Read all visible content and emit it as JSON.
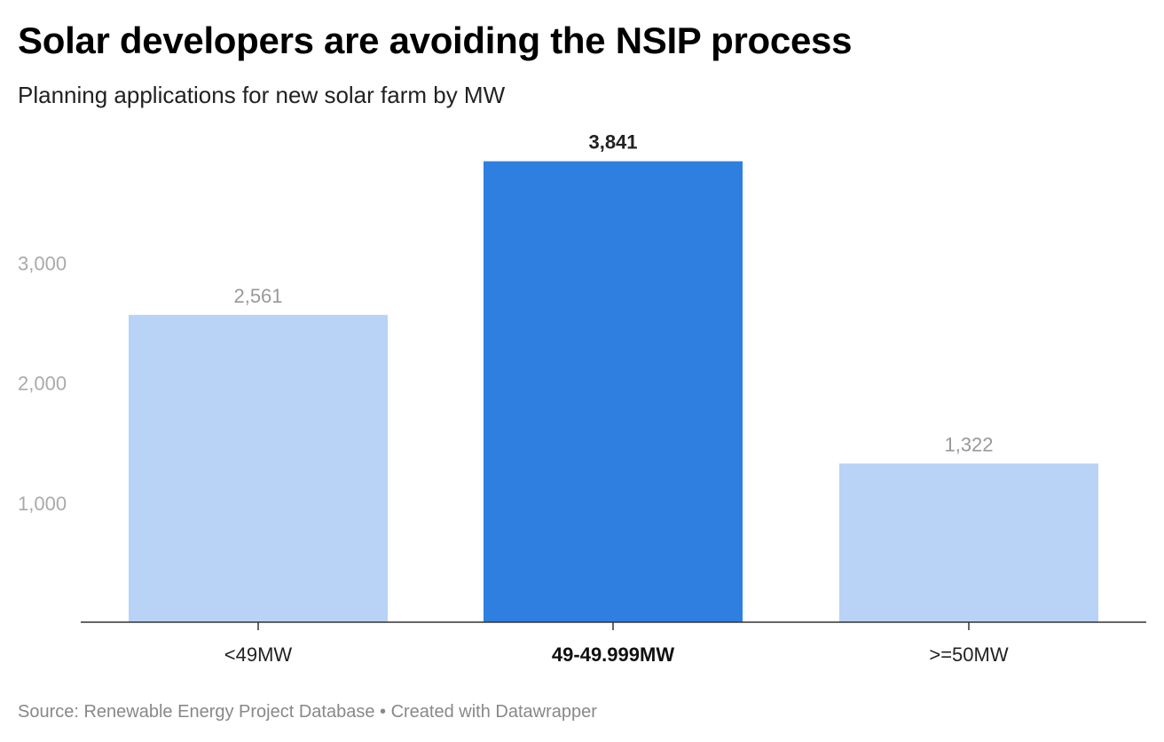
{
  "header": {
    "title": "Solar developers are avoiding the NSIP process",
    "subtitle": "Planning applications for new solar farm by MW"
  },
  "footer": {
    "source": "Source: Renewable Energy Project Database • Created with Datawrapper"
  },
  "colors": {
    "highlight": "#2f7fe0",
    "base": "#b8d3f5",
    "label_muted": "#999999",
    "label_strong": "#222222",
    "axis_label": "#aaaaaa"
  },
  "chart_data": {
    "type": "bar",
    "categories": [
      "<49MW",
      "49-49.999MW",
      ">=50MW"
    ],
    "values": [
      2561,
      3841,
      1322
    ],
    "value_labels": [
      "2,561",
      "3,841",
      "1,322"
    ],
    "highlighted": [
      false,
      true,
      false
    ],
    "ylim": [
      0,
      4000
    ],
    "yticks": [
      1000,
      2000,
      3000
    ],
    "ytick_labels": [
      "1,000",
      "2,000",
      "3,000"
    ],
    "grid": false
  }
}
